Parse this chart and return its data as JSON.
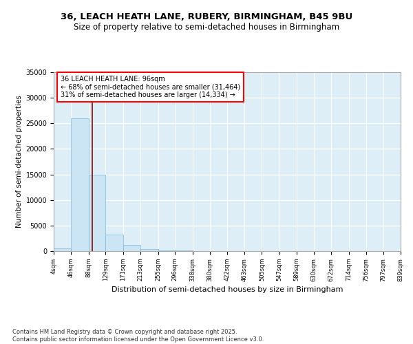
{
  "title": "36, LEACH HEATH LANE, RUBERY, BIRMINGHAM, B45 9BU",
  "subtitle": "Size of property relative to semi-detached houses in Birmingham",
  "xlabel": "Distribution of semi-detached houses by size in Birmingham",
  "ylabel": "Number of semi-detached properties",
  "bar_color": "#cce5f5",
  "bar_edge_color": "#7ab8d9",
  "background_color": "#ddeef7",
  "property_size": 96,
  "property_line_color": "#8b0000",
  "annotation_text": "36 LEACH HEATH LANE: 96sqm\n← 68% of semi-detached houses are smaller (31,464)\n31% of semi-detached houses are larger (14,334) →",
  "bin_edges": [
    4,
    46,
    88,
    129,
    171,
    213,
    255,
    296,
    338,
    380,
    422,
    463,
    505,
    547,
    589,
    630,
    672,
    714,
    756,
    797,
    839
  ],
  "bin_heights": [
    500,
    26000,
    15000,
    3200,
    1200,
    450,
    200,
    80,
    40,
    20,
    10,
    8,
    5,
    4,
    3,
    2,
    2,
    1,
    1,
    0
  ],
  "ylim": [
    0,
    35000
  ],
  "yticks": [
    0,
    5000,
    10000,
    15000,
    20000,
    25000,
    30000,
    35000
  ],
  "xtick_labels": [
    "4sqm",
    "46sqm",
    "88sqm",
    "129sqm",
    "171sqm",
    "213sqm",
    "255sqm",
    "296sqm",
    "338sqm",
    "380sqm",
    "422sqm",
    "463sqm",
    "505sqm",
    "547sqm",
    "589sqm",
    "630sqm",
    "672sqm",
    "714sqm",
    "756sqm",
    "797sqm",
    "839sqm"
  ],
  "footer_text": "Contains HM Land Registry data © Crown copyright and database right 2025.\nContains public sector information licensed under the Open Government Licence v3.0.",
  "title_fontsize": 9.5,
  "subtitle_fontsize": 8.5
}
